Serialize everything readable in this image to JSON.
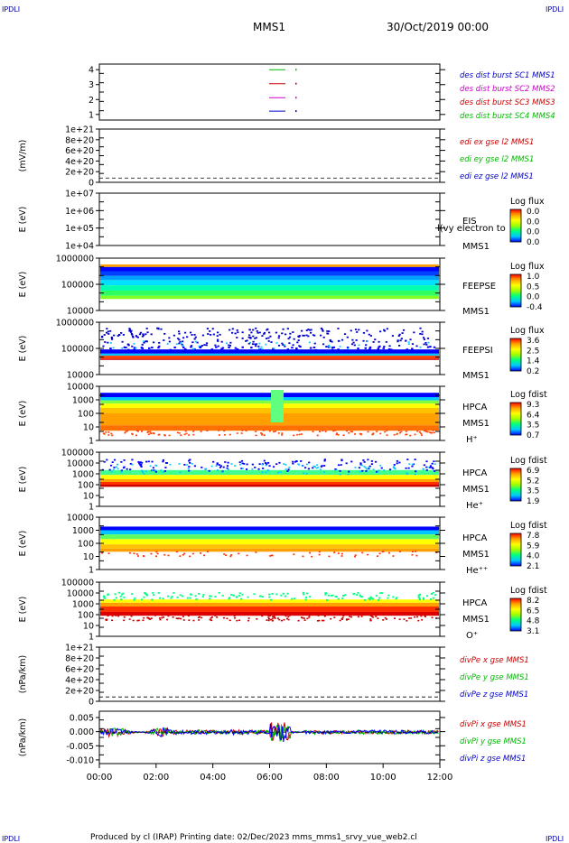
{
  "corner_tag": "IPDLI",
  "header": {
    "title": "MMS1",
    "date": "30/Oct/2019 00:00"
  },
  "footer": {
    "text": "Produced by cl (IRAP)   Printing date: 02/Dec/2023   mms_mms1_srvy_vue_web2.cl"
  },
  "chart_data": {
    "type": "heatmap",
    "x_ticks": [
      "00:00",
      "02:00",
      "04:00",
      "06:00",
      "08:00",
      "10:00",
      "12:00"
    ],
    "xlim": [
      "00:00",
      "12:00"
    ],
    "panels": [
      {
        "id": "des-dist-burst",
        "ylabel": "",
        "y_ticks": [
          "4",
          "3",
          "2",
          "1"
        ],
        "legend": [
          {
            "name": "des dist burst SC1 MMS1",
            "color": "#0000cc"
          },
          {
            "name": "des dist burst SC2 MMS2",
            "color": "#cc00cc"
          },
          {
            "name": "des dist burst SC3 MMS3",
            "color": "#cc0000"
          },
          {
            "name": "des dist burst SC4 MMS4",
            "color": "#00bb00"
          }
        ]
      },
      {
        "id": "edi-e",
        "ylabel": "(mV/m)",
        "y_ticks": [
          "1e+21",
          "8e+20",
          "6e+20",
          "4e+20",
          "2e+20",
          "0"
        ],
        "legend": [
          {
            "name": "edi ex gse l2 MMS1",
            "color": "#cc0000"
          },
          {
            "name": "edi ey gse l2 MMS1",
            "color": "#00bb00"
          },
          {
            "name": "edi ez gse l2 MMS1",
            "color": "#0000cc"
          }
        ]
      },
      {
        "id": "eis",
        "ylabel": "E (eV)",
        "y_ticks": [
          "1e+07",
          "1e+06",
          "1e+05",
          "1e+04"
        ],
        "labels": [
          "EIS",
          "MMS1"
        ],
        "overlay_text": "l(vy electron to",
        "cbar_title": "Log flux",
        "cbar_ticks": [
          "0.0",
          "0.0",
          "0.0",
          "0.0"
        ]
      },
      {
        "id": "feepse",
        "ylabel": "E (eV)",
        "y_ticks": [
          "1000000",
          "100000",
          "10000"
        ],
        "labels": [
          "FEEPSE",
          "MMS1"
        ],
        "cbar_title": "Log flux",
        "cbar_ticks": [
          "1.0",
          "0.5",
          "0.0",
          "-0.4"
        ]
      },
      {
        "id": "feepsi",
        "ylabel": "E (eV)",
        "y_ticks": [
          "1000000",
          "100000",
          "10000"
        ],
        "labels": [
          "FEEPSI",
          "MMS1"
        ],
        "cbar_title": "Log flux",
        "cbar_ticks": [
          "3.6",
          "2.5",
          "1.4",
          "0.2"
        ]
      },
      {
        "id": "hpca-h",
        "ylabel": "E (eV)",
        "y_ticks": [
          "10000",
          "1000",
          "100",
          "10",
          "1"
        ],
        "labels": [
          "HPCA",
          "MMS1",
          "H⁺"
        ],
        "cbar_title": "Log fdist",
        "cbar_ticks": [
          "9.3",
          "6.4",
          "3.5",
          "0.7"
        ]
      },
      {
        "id": "hpca-he",
        "ylabel": "E (eV)",
        "y_ticks": [
          "100000",
          "10000",
          "1000",
          "100",
          "10",
          "1"
        ],
        "labels": [
          "HPCA",
          "MMS1",
          "He⁺"
        ],
        "cbar_title": "Log fdist",
        "cbar_ticks": [
          "6.9",
          "5.2",
          "3.5",
          "1.9"
        ]
      },
      {
        "id": "hpca-hepp",
        "ylabel": "E (eV)",
        "y_ticks": [
          "10000",
          "1000",
          "100",
          "10",
          "1"
        ],
        "labels": [
          "HPCA",
          "MMS1",
          "He⁺⁺"
        ],
        "cbar_title": "Log fdist",
        "cbar_ticks": [
          "7.8",
          "5.9",
          "4.0",
          "2.1"
        ]
      },
      {
        "id": "hpca-o",
        "ylabel": "E (eV)",
        "y_ticks": [
          "100000",
          "10000",
          "1000",
          "100",
          "10",
          "1"
        ],
        "labels": [
          "HPCA",
          "MMS1",
          "O⁺"
        ],
        "cbar_title": "Log fdist",
        "cbar_ticks": [
          "8.2",
          "6.5",
          "4.8",
          "3.1"
        ]
      },
      {
        "id": "divpe",
        "ylabel": "(nPa/km)",
        "y_ticks": [
          "1e+21",
          "8e+20",
          "6e+20",
          "4e+20",
          "2e+20",
          "0"
        ],
        "legend": [
          {
            "name": "divPe x gse MMS1",
            "color": "#cc0000"
          },
          {
            "name": "divPe y gse MMS1",
            "color": "#00bb00"
          },
          {
            "name": "divPe z gse MMS1",
            "color": "#0000cc"
          }
        ]
      },
      {
        "id": "divpi",
        "ylabel": "(nPa/km)",
        "y_ticks": [
          "0.005",
          "0.000",
          "-0.005",
          "-0.010"
        ],
        "ylim": [
          -0.011,
          0.007
        ],
        "legend": [
          {
            "name": "divPi x gse MMS1",
            "color": "#cc0000"
          },
          {
            "name": "divPi y gse MMS1",
            "color": "#00bb00"
          },
          {
            "name": "divPi z gse MMS1",
            "color": "#0000cc"
          }
        ]
      }
    ]
  }
}
